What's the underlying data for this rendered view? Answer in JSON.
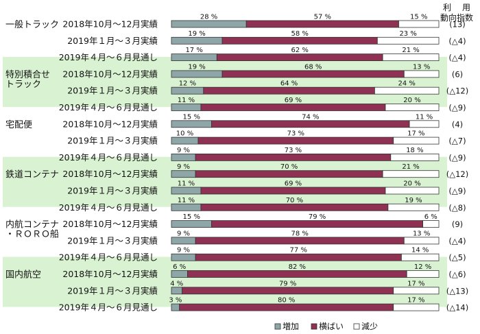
{
  "colors": {
    "increase": "#8fa6a8",
    "flat": "#8e3153",
    "decrease": "#ffffff",
    "group_shade": "#d9f2d2",
    "outline": "#333333"
  },
  "chart_data": {
    "type": "bar",
    "stacked": "percent",
    "orientation": "horizontal",
    "header": [
      "利",
      "用",
      "動向指数"
    ],
    "series_names": [
      "増加",
      "横ばい",
      "減少"
    ],
    "index_label": "動向指数",
    "groups": [
      {
        "name": [
          "一般トラック"
        ],
        "shaded": false,
        "rows": [
          {
            "period": "2018年10月～12月実績",
            "increase": 28,
            "flat": 57,
            "decrease": 15,
            "index": "(13)"
          },
          {
            "period": "2019年１月～３月実績",
            "increase": 19,
            "flat": 58,
            "decrease": 23,
            "index": "(△4)"
          },
          {
            "period": "2019年４月～６月見通し",
            "increase": 17,
            "flat": 62,
            "decrease": 21,
            "index": "(△4)"
          }
        ]
      },
      {
        "name": [
          "特別積合せ",
          "トラック"
        ],
        "shaded": true,
        "rows": [
          {
            "period": "2018年10月～12月実績",
            "increase": 19,
            "flat": 68,
            "decrease": 13,
            "index": "(6)"
          },
          {
            "period": "2019年１月～３月実績",
            "increase": 12,
            "flat": 64,
            "decrease": 24,
            "index": "(△12)"
          },
          {
            "period": "2019年４月～６月見通し",
            "increase": 11,
            "flat": 69,
            "decrease": 20,
            "index": "(△9)"
          }
        ]
      },
      {
        "name": [
          "宅配便"
        ],
        "shaded": false,
        "rows": [
          {
            "period": "2018年10月～12月実績",
            "increase": 15,
            "flat": 74,
            "decrease": 11,
            "index": "(4)"
          },
          {
            "period": "2019年１月～３月実績",
            "increase": 10,
            "flat": 73,
            "decrease": 17,
            "index": "(△7)"
          },
          {
            "period": "2019年４月～６月見通し",
            "increase": 9,
            "flat": 73,
            "decrease": 18,
            "index": "(△9)"
          }
        ]
      },
      {
        "name": [
          "鉄道コンテナ"
        ],
        "shaded": true,
        "rows": [
          {
            "period": "2018年10月～12月実績",
            "increase": 9,
            "flat": 70,
            "decrease": 21,
            "index": "(△12)"
          },
          {
            "period": "2019年１月～３月実績",
            "increase": 11,
            "flat": 69,
            "decrease": 20,
            "index": "(△9)"
          },
          {
            "period": "2019年４月～６月見通し",
            "increase": 11,
            "flat": 70,
            "decrease": 19,
            "index": "(△8)"
          }
        ]
      },
      {
        "name": [
          "内航コンテナ",
          "・ＲＯＲＯ船"
        ],
        "shaded": false,
        "rows": [
          {
            "period": "2018年10月～12月実績",
            "increase": 15,
            "flat": 79,
            "decrease": 6,
            "index": "(9)"
          },
          {
            "period": "2019年１月～３月実績",
            "increase": 9,
            "flat": 78,
            "decrease": 13,
            "index": "(△4)"
          },
          {
            "period": "2019年４月～６月見通し",
            "increase": 9,
            "flat": 77,
            "decrease": 14,
            "index": "(△5)"
          }
        ]
      },
      {
        "name": [
          "国内航空"
        ],
        "shaded": true,
        "rows": [
          {
            "period": "2018年10月～12月実績",
            "increase": 6,
            "flat": 82,
            "decrease": 12,
            "index": "(△6)"
          },
          {
            "period": "2019年１月～３月実績",
            "increase": 4,
            "flat": 79,
            "decrease": 17,
            "index": "(△13)"
          },
          {
            "period": "2019年４月～６月見通し",
            "increase": 3,
            "flat": 80,
            "decrease": 17,
            "index": "(△14)"
          }
        ]
      }
    ]
  }
}
